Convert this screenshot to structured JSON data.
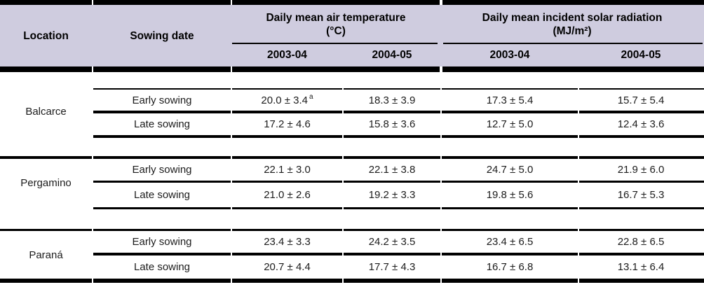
{
  "header": {
    "location": "Location",
    "sowing_date": "Sowing date",
    "temp_title": "Daily mean air temperature",
    "temp_unit": "(°C)",
    "rad_title": "Daily mean incident solar radiation",
    "rad_unit": "(MJ/m²)",
    "temp_s1": "2003-04",
    "temp_s2": "2004-05",
    "rad_s1": "2003-04",
    "rad_s2": "2004-05"
  },
  "groups": [
    {
      "location": "Balcarce",
      "rows": [
        {
          "sowing": "Early sowing",
          "temp_2003_04": "20.0 ± 3.4",
          "temp_2003_04_sup": "a",
          "temp_2004_05": "18.3 ± 3.9",
          "rad_2003_04": "17.3 ± 5.4",
          "rad_2004_05": "15.7 ± 5.4"
        },
        {
          "sowing": "Late sowing",
          "temp_2003_04": "17.2 ± 4.6",
          "temp_2004_05": "15.8 ± 3.6",
          "rad_2003_04": "12.7 ± 5.0",
          "rad_2004_05": "12.4 ± 3.6"
        }
      ]
    },
    {
      "location": "Pergamino",
      "rows": [
        {
          "sowing": "Early sowing",
          "temp_2003_04": "22.1 ± 3.0",
          "temp_2004_05": "22.1 ± 3.8",
          "rad_2003_04": "24.7 ± 5.0",
          "rad_2004_05": "21.9 ± 6.0"
        },
        {
          "sowing": "Late sowing",
          "temp_2003_04": "21.0 ± 2.6",
          "temp_2004_05": "19.2 ± 3.3",
          "rad_2003_04": "19.8 ± 5.6",
          "rad_2004_05": "16.7 ± 5.3"
        }
      ]
    },
    {
      "location": "Paraná",
      "rows": [
        {
          "sowing": "Early sowing",
          "temp_2003_04": "23.4 ± 3.3",
          "temp_2004_05": "24.2 ± 3.5",
          "rad_2003_04": "23.4 ± 6.5",
          "rad_2004_05": "22.8 ± 6.5"
        },
        {
          "sowing": "Late sowing",
          "temp_2003_04": "20.7 ± 4.4",
          "temp_2004_05": "17.7 ± 4.3",
          "rad_2003_04": "16.7 ± 6.8",
          "rad_2004_05": "13.1 ± 6.4"
        }
      ]
    }
  ],
  "chart_data": {
    "type": "table",
    "columns": [
      "Location",
      "Sowing date",
      "Daily mean air temperature (°C) 2003-04",
      "Daily mean air temperature (°C) 2004-05",
      "Daily mean incident solar radiation (MJ/m²) 2003-04",
      "Daily mean incident solar radiation (MJ/m²) 2004-05"
    ],
    "rows": [
      [
        "Balcarce",
        "Early sowing",
        "20.0 ± 3.4 a",
        "18.3 ± 3.9",
        "17.3 ± 5.4",
        "15.7 ± 5.4"
      ],
      [
        "Balcarce",
        "Late sowing",
        "17.2 ± 4.6",
        "15.8 ± 3.6",
        "12.7 ± 5.0",
        "12.4 ± 3.6"
      ],
      [
        "Pergamino",
        "Early sowing",
        "22.1 ± 3.0",
        "22.1 ± 3.8",
        "24.7 ± 5.0",
        "21.9 ± 6.0"
      ],
      [
        "Pergamino",
        "Late sowing",
        "21.0 ± 2.6",
        "19.2 ± 3.3",
        "19.8 ± 5.6",
        "16.7 ± 5.3"
      ],
      [
        "Paraná",
        "Early sowing",
        "23.4 ± 3.3",
        "24.2 ± 3.5",
        "23.4 ± 6.5",
        "22.8 ± 6.5"
      ],
      [
        "Paraná",
        "Late sowing",
        "20.7 ± 4.4",
        "17.7 ± 4.3",
        "16.7 ± 6.8",
        "13.1 ± 6.4"
      ]
    ]
  },
  "colors": {
    "header_bg": "#cfccdf",
    "rule": "#000000",
    "text": "#1c1c1c"
  }
}
